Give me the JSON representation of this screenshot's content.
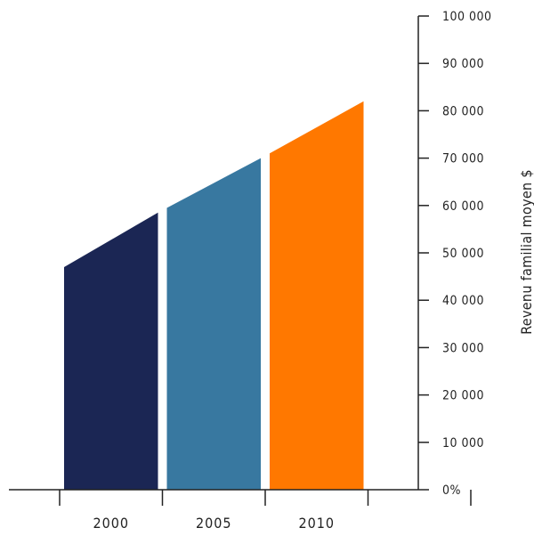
{
  "chart_data": {
    "type": "bar",
    "title": "",
    "xlabel": "",
    "ylabel": "Revenu familial moyen $",
    "categories": [
      "2000",
      "2005",
      "2010"
    ],
    "series": [
      {
        "start_values": [
          47000,
          59500,
          71000
        ],
        "end_values": [
          58500,
          70000,
          82000
        ]
      }
    ],
    "colors": [
      "#1b2654",
      "#3878a0",
      "#ff7800"
    ],
    "ylim": [
      0,
      100000
    ],
    "y_ticks": [
      0,
      10000,
      20000,
      30000,
      40000,
      50000,
      60000,
      70000,
      80000,
      90000,
      100000
    ],
    "y_tick_labels": [
      "0%",
      "10 000",
      "20 000",
      "30 000",
      "40 000",
      "50 000",
      "60 000",
      "70 000",
      "80 000",
      "90 000",
      "100 000"
    ],
    "y_axis_side": "right",
    "grid": false,
    "legend": "none"
  }
}
